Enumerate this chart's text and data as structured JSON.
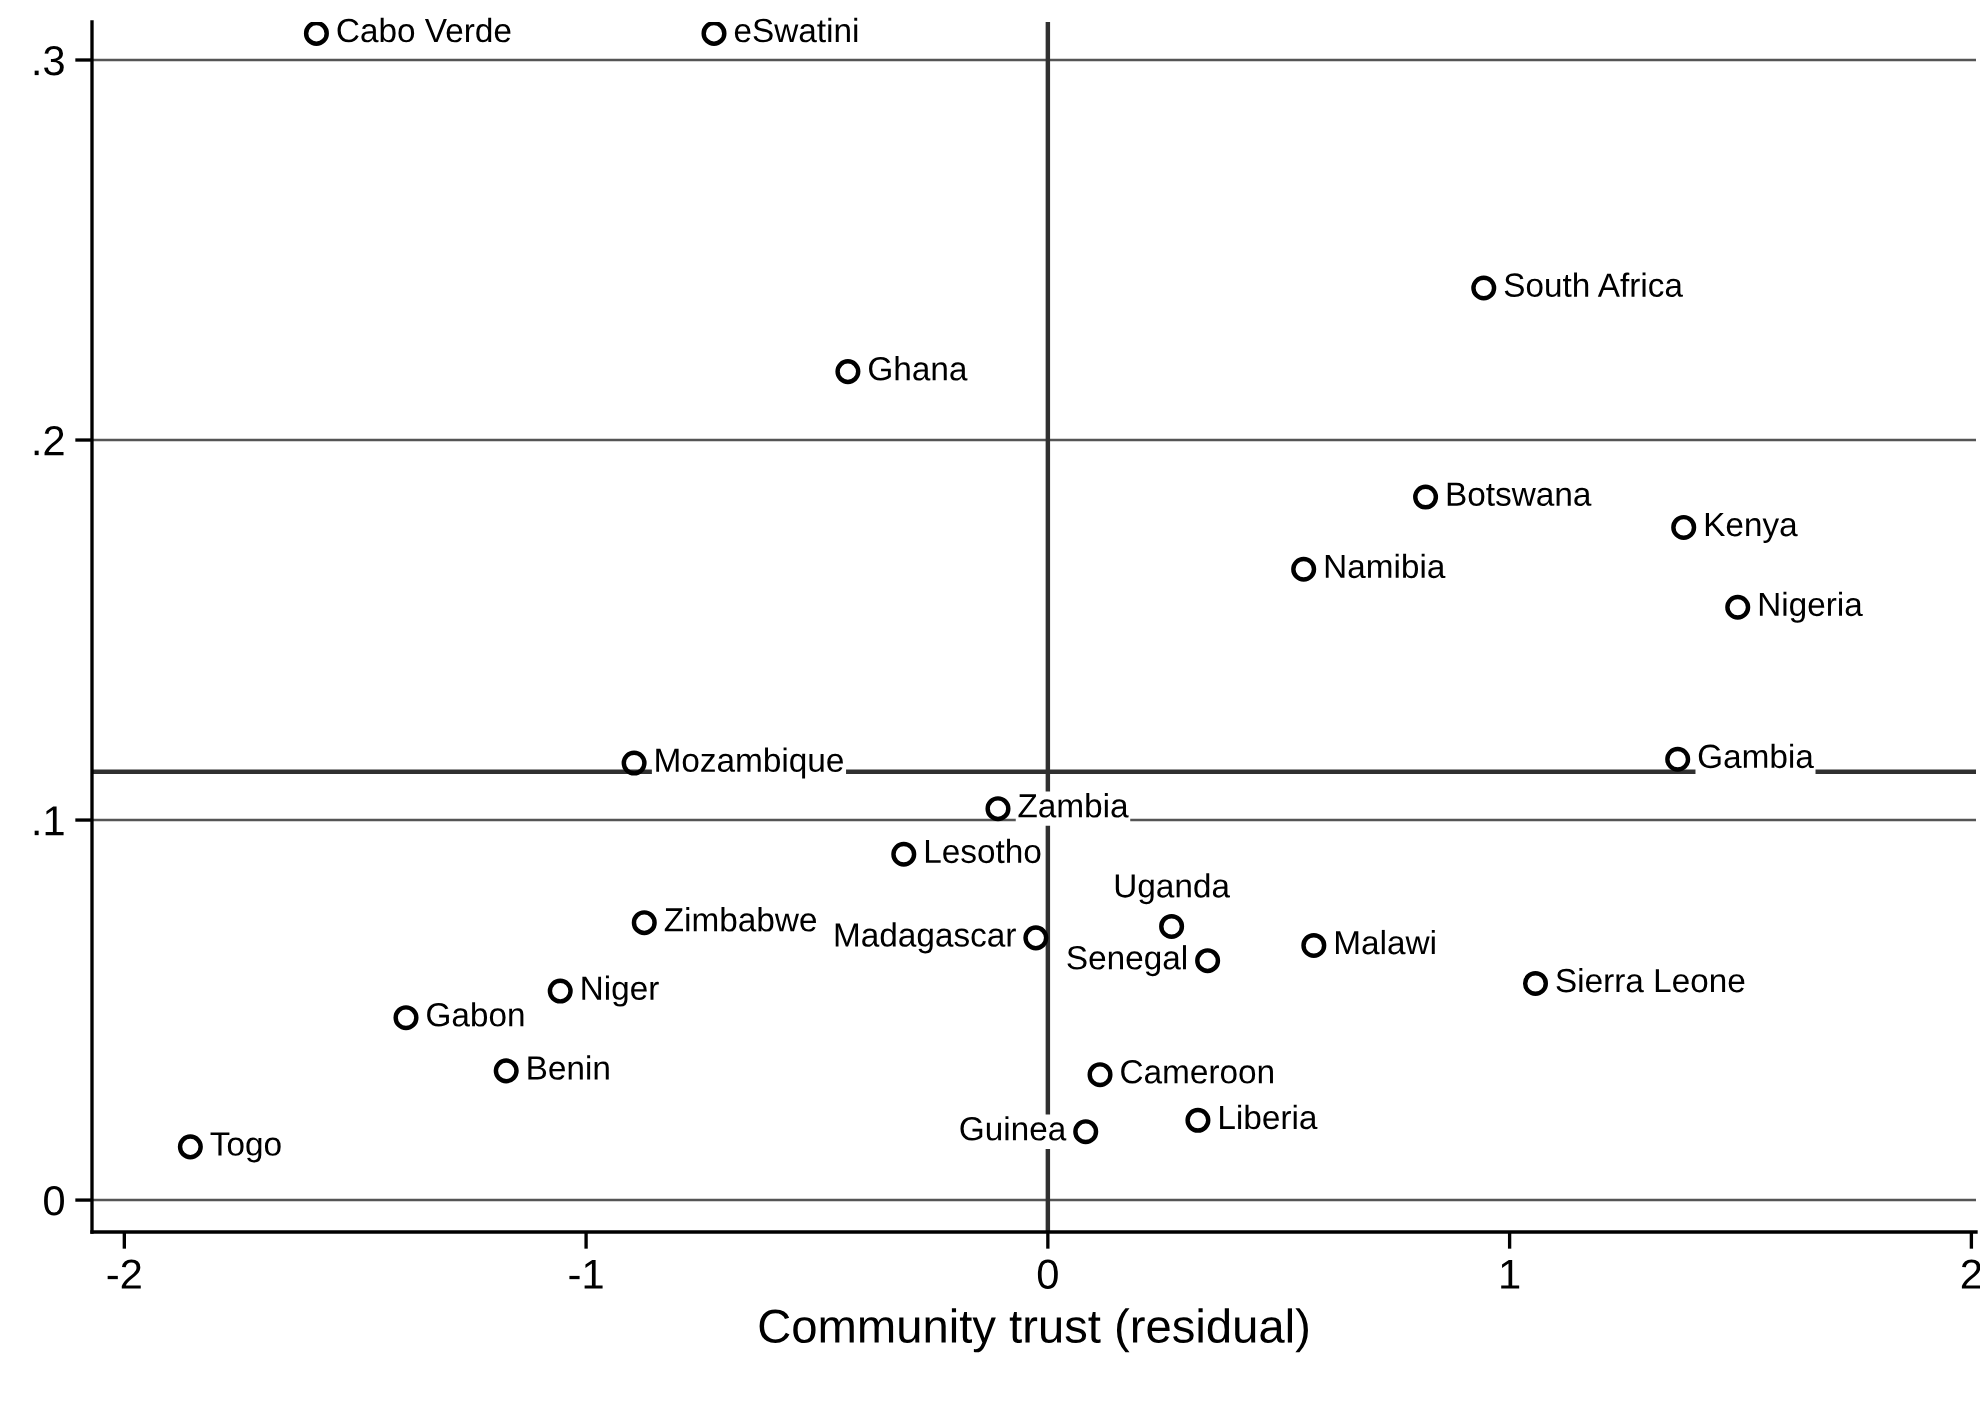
{
  "chart_data": {
    "type": "scatter",
    "xlabel": "Community trust (residual)",
    "x": [
      -1.584,
      -0.723,
      -0.433,
      0.944,
      0.818,
      1.377,
      0.554,
      1.494,
      -0.896,
      1.364,
      -0.108,
      -0.312,
      -0.874,
      -0.026,
      0.268,
      0.576,
      0.346,
      1.056,
      -1.056,
      -1.39,
      -1.173,
      0.113,
      0.325,
      0.082,
      -1.857
    ],
    "values": [
      0.307,
      0.307,
      0.218,
      0.24,
      0.185,
      0.177,
      0.166,
      0.156,
      0.115,
      0.116,
      0.103,
      0.091,
      0.073,
      0.069,
      0.072,
      0.067,
      0.063,
      0.057,
      0.055,
      0.048,
      0.034,
      0.033,
      0.021,
      0.018,
      0.014
    ],
    "color": "#000000",
    "marker": "circle",
    "annotations": [
      {
        "text": "Cabo Verde",
        "x": -1.584,
        "y": 0.307
      },
      {
        "text": "eSwatini",
        "x": -0.723,
        "y": 0.307
      },
      {
        "text": "Ghana",
        "x": -0.433,
        "y": 0.218
      },
      {
        "text": "South Africa",
        "x": 0.944,
        "y": 0.24
      },
      {
        "text": "Botswana",
        "x": 0.818,
        "y": 0.185
      },
      {
        "text": "Kenya",
        "x": 1.377,
        "y": 0.177
      },
      {
        "text": "Namibia",
        "x": 0.554,
        "y": 0.166
      },
      {
        "text": "Nigeria",
        "x": 1.494,
        "y": 0.156
      },
      {
        "text": "Mozambique",
        "x": -0.896,
        "y": 0.115
      },
      {
        "text": "Gambia",
        "x": 1.364,
        "y": 0.116
      },
      {
        "text": "Zambia",
        "x": -0.108,
        "y": 0.103
      },
      {
        "text": "Lesotho",
        "x": -0.312,
        "y": 0.091
      },
      {
        "text": "Zimbabwe",
        "x": -0.874,
        "y": 0.073
      },
      {
        "text": "Madagascar",
        "x": -0.026,
        "y": 0.069
      },
      {
        "text": "Uganda",
        "x": 0.268,
        "y": 0.072
      },
      {
        "text": "Malawi",
        "x": 0.576,
        "y": 0.067
      },
      {
        "text": "Senegal",
        "x": 0.346,
        "y": 0.063
      },
      {
        "text": "Sierra Leone",
        "x": 1.056,
        "y": 0.057
      },
      {
        "text": "Niger",
        "x": -1.056,
        "y": 0.055
      },
      {
        "text": "Gabon",
        "x": -1.39,
        "y": 0.048
      },
      {
        "text": "Benin",
        "x": -1.173,
        "y": 0.034
      },
      {
        "text": "Cameroon",
        "x": 0.113,
        "y": 0.033
      },
      {
        "text": "Liberia",
        "x": 0.325,
        "y": 0.021
      },
      {
        "text": "Guinea",
        "x": 0.082,
        "y": 0.018
      },
      {
        "text": "Togo",
        "x": -1.857,
        "y": 0.014
      }
    ],
    "ref_lines": [
      {
        "axis": "x",
        "value": 0,
        "color": "#303030"
      },
      {
        "axis": "y",
        "value": 0.1127,
        "color": "#303030"
      }
    ],
    "xlim": [
      -2.07,
      2.01
    ],
    "ylim": [
      -0.0084,
      0.31
    ],
    "xticks": [
      -2,
      -1,
      0,
      1,
      2
    ],
    "yticks": [
      {
        "value": 0,
        "label": "0"
      },
      {
        "value": 0.1,
        "label": ".1"
      },
      {
        "value": 0.2,
        "label": ".2"
      },
      {
        "value": 0.3,
        "label": ".3"
      }
    ],
    "grid": "y",
    "legend": false
  }
}
